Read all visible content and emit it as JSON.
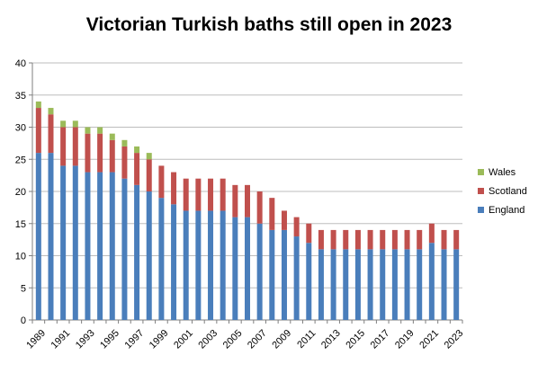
{
  "chart_data": {
    "type": "bar",
    "stacked": true,
    "title": "Victorian Turkish baths still open in 2023",
    "xlabel": "",
    "ylabel": "",
    "ylim": [
      0,
      40
    ],
    "yticks": [
      0,
      5,
      10,
      15,
      20,
      25,
      30,
      35,
      40
    ],
    "grid": true,
    "legend_position": "right",
    "categories": [
      "1989",
      "1990",
      "1991",
      "1992",
      "1993",
      "1994",
      "1995",
      "1996",
      "1997",
      "1998",
      "1999",
      "2000",
      "2001",
      "2002",
      "2003",
      "2004",
      "2005",
      "2006",
      "2007",
      "2008",
      "2009",
      "2010",
      "2011",
      "2012",
      "2013",
      "2014",
      "2015",
      "2016",
      "2017",
      "2018",
      "2019",
      "2020",
      "2021",
      "2022",
      "2023"
    ],
    "xtick_labels": [
      "1989",
      "1991",
      "1993",
      "1995",
      "1997",
      "1999",
      "2001",
      "2003",
      "2005",
      "2007",
      "2009",
      "2011",
      "2013",
      "2015",
      "2017",
      "2019",
      "2021",
      "2023"
    ],
    "series": [
      {
        "name": "England",
        "color": "#4a7ebb",
        "values": [
          26,
          26,
          24,
          24,
          23,
          23,
          23,
          22,
          21,
          20,
          19,
          18,
          17,
          17,
          17,
          17,
          16,
          16,
          15,
          14,
          14,
          13,
          12,
          11,
          11,
          11,
          11,
          11,
          11,
          11,
          11,
          11,
          12,
          11,
          11
        ]
      },
      {
        "name": "Scotland",
        "color": "#c0504d",
        "values": [
          7,
          6,
          6,
          6,
          6,
          6,
          5,
          5,
          5,
          5,
          5,
          5,
          5,
          5,
          5,
          5,
          5,
          5,
          5,
          5,
          3,
          3,
          3,
          3,
          3,
          3,
          3,
          3,
          3,
          3,
          3,
          3,
          3,
          3,
          3
        ]
      },
      {
        "name": "Wales",
        "color": "#9bbb59",
        "values": [
          1,
          1,
          1,
          1,
          1,
          1,
          1,
          1,
          1,
          1,
          0,
          0,
          0,
          0,
          0,
          0,
          0,
          0,
          0,
          0,
          0,
          0,
          0,
          0,
          0,
          0,
          0,
          0,
          0,
          0,
          0,
          0,
          0,
          0,
          0
        ]
      }
    ]
  }
}
